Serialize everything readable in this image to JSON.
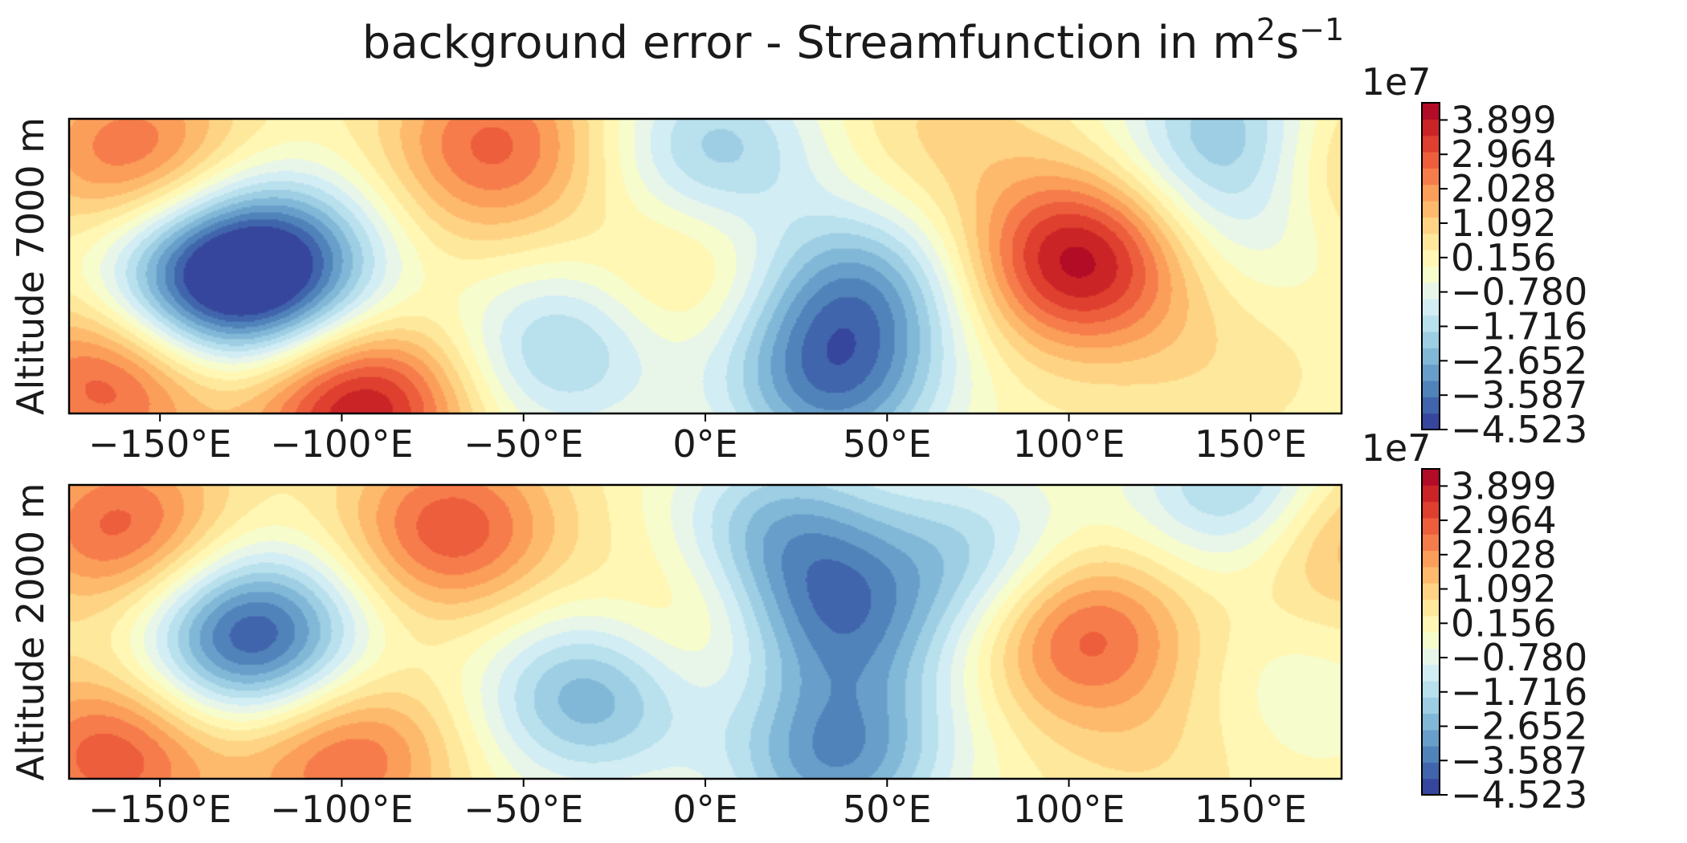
{
  "figure": {
    "title_main": "background error - Streamfunction in m",
    "title_sup1": "2",
    "title_mid": "s",
    "title_sup2": "−1"
  },
  "chart_data": [
    {
      "type": "heatmap",
      "ylabel": "Altitude 7000 m",
      "xlim": [
        -175,
        175
      ],
      "x_ticks": [
        -150,
        -100,
        -50,
        0,
        50,
        100,
        150
      ],
      "x_tick_labels": [
        "−150°E",
        "−100°E",
        "−50°E",
        "0°E",
        "50°E",
        "100°E",
        "150°E"
      ],
      "colorbar_multiplier": "1e7",
      "colorbar_range": [
        -4.523,
        4.367
      ],
      "colorbar_ticks": [
        3.899,
        2.964,
        2.028,
        1.092,
        0.156,
        -0.78,
        -1.716,
        -2.652,
        -3.587,
        -4.523
      ],
      "colorbar_tick_labels": [
        "3.899",
        "2.964",
        "2.028",
        "1.092",
        "0.156",
        "−0.780",
        "−1.716",
        "−2.652",
        "−3.587",
        "−4.523"
      ],
      "colormap": "RdYlBu_r",
      "features": [
        {
          "lon": -157,
          "lat": 0.88,
          "value": 2.5
        },
        {
          "lon": -163,
          "lat": 0.12,
          "value": 3.0
        },
        {
          "lon": -118,
          "lat": 0.5,
          "value": -4.0
        },
        {
          "lon": -140,
          "lat": 0.43,
          "value": -3.3
        },
        {
          "lon": -95,
          "lat": 0.02,
          "value": 3.9
        },
        {
          "lon": -58,
          "lat": 0.92,
          "value": 2.5
        },
        {
          "lon": -65,
          "lat": 0.6,
          "value": 0.3
        },
        {
          "lon": -40,
          "lat": 0.22,
          "value": -2.2
        },
        {
          "lon": -3,
          "lat": 0.45,
          "value": 1.2
        },
        {
          "lon": 3,
          "lat": 0.9,
          "value": -2.2
        },
        {
          "lon": 42,
          "lat": 0.42,
          "value": -2.8
        },
        {
          "lon": 35,
          "lat": 0.08,
          "value": -3.0
        },
        {
          "lon": 65,
          "lat": 0.95,
          "value": 0.8
        },
        {
          "lon": 103,
          "lat": 0.52,
          "value": 4.0
        },
        {
          "lon": 145,
          "lat": 0.96,
          "value": -2.5
        },
        {
          "lon": 150,
          "lat": 0.65,
          "value": -1.2
        },
        {
          "lon": 172,
          "lat": 0.85,
          "value": 1.7
        },
        {
          "lon": 140,
          "lat": 0.2,
          "value": 0.5
        },
        {
          "lon": 15,
          "lat": 0.3,
          "value": -0.5
        }
      ]
    },
    {
      "type": "heatmap",
      "ylabel": "Altitude 2000 m",
      "xlim": [
        -175,
        175
      ],
      "x_ticks": [
        -150,
        -100,
        -50,
        0,
        50,
        100,
        150
      ],
      "x_tick_labels": [
        "−150°E",
        "−100°E",
        "−50°E",
        "0°E",
        "50°E",
        "100°E",
        "150°E"
      ],
      "colorbar_multiplier": "1e7",
      "colorbar_range": [
        -4.523,
        4.367
      ],
      "colorbar_ticks": [
        3.899,
        2.964,
        2.028,
        1.092,
        0.156,
        -0.78,
        -1.716,
        -2.652,
        -3.587,
        -4.523
      ],
      "colorbar_tick_labels": [
        "3.899",
        "2.964",
        "2.028",
        "1.092",
        "0.156",
        "−0.780",
        "−1.716",
        "−2.652",
        "−3.587",
        "−4.523"
      ],
      "colormap": "RdYlBu_r",
      "features": [
        {
          "lon": -160,
          "lat": 0.85,
          "value": 2.7
        },
        {
          "lon": -163,
          "lat": 0.08,
          "value": 2.8
        },
        {
          "lon": -125,
          "lat": 0.48,
          "value": -4.5
        },
        {
          "lon": -100,
          "lat": 0.08,
          "value": 2.6
        },
        {
          "lon": -70,
          "lat": 0.85,
          "value": 2.8
        },
        {
          "lon": -32,
          "lat": 0.28,
          "value": -2.8
        },
        {
          "lon": 0,
          "lat": 0.55,
          "value": 1.2
        },
        {
          "lon": 35,
          "lat": 0.55,
          "value": -3.0
        },
        {
          "lon": 20,
          "lat": 0.85,
          "value": -2.4
        },
        {
          "lon": 35,
          "lat": 0.06,
          "value": -3.0
        },
        {
          "lon": 75,
          "lat": 0.75,
          "value": -2.0
        },
        {
          "lon": 103,
          "lat": 0.5,
          "value": 2.8
        },
        {
          "lon": 150,
          "lat": 0.98,
          "value": -2.8
        },
        {
          "lon": 172,
          "lat": 0.85,
          "value": 2.2
        },
        {
          "lon": 125,
          "lat": 0.1,
          "value": 0.6
        },
        {
          "lon": 160,
          "lat": 0.3,
          "value": -0.6
        },
        {
          "lon": 55,
          "lat": 0.25,
          "value": -0.5
        }
      ]
    }
  ]
}
